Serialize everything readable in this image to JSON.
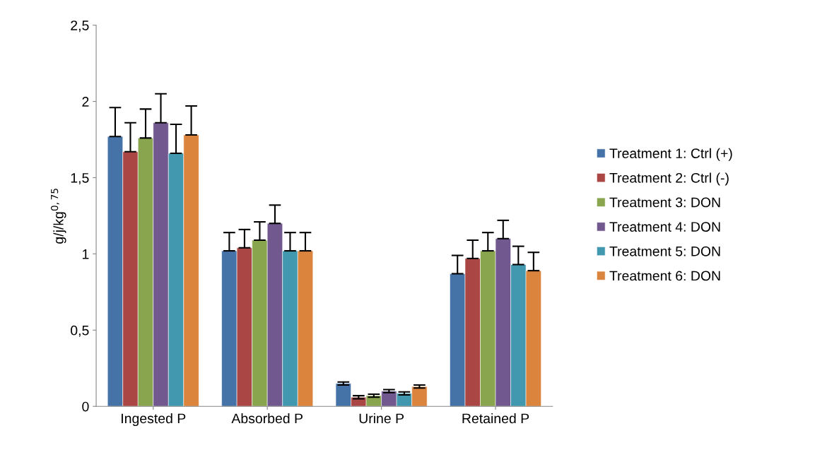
{
  "chart_data": {
    "type": "bar",
    "ylabel": "g/j/kg$^{0,75}$",
    "categories": [
      "Ingested P",
      "Absorbed P",
      "Urine P",
      "Retained P"
    ],
    "series": [
      {
        "name": "Treatment 1: Ctrl (+)",
        "color": "#4572a7",
        "values": [
          1.77,
          1.02,
          0.15,
          0.87
        ],
        "errors": [
          [
            1.77,
            1.96
          ],
          [
            1.02,
            1.14
          ],
          [
            0.14,
            0.16
          ],
          [
            0.87,
            0.99
          ]
        ]
      },
      {
        "name": "Treatment 2: Ctrl (-)",
        "color": "#aa4643",
        "values": [
          1.67,
          1.04,
          0.06,
          0.97
        ],
        "errors": [
          [
            1.67,
            1.86
          ],
          [
            1.04,
            1.16
          ],
          [
            0.05,
            0.07
          ],
          [
            0.97,
            1.09
          ]
        ]
      },
      {
        "name": "Treatment 3: DON",
        "color": "#89a54e",
        "values": [
          1.76,
          1.09,
          0.07,
          1.02
        ],
        "errors": [
          [
            1.76,
            1.95
          ],
          [
            1.09,
            1.21
          ],
          [
            0.06,
            0.08
          ],
          [
            1.02,
            1.14
          ]
        ]
      },
      {
        "name": "Treatment 4: DON",
        "color": "#71588f",
        "values": [
          1.86,
          1.2,
          0.1,
          1.1
        ],
        "errors": [
          [
            1.86,
            2.05
          ],
          [
            1.2,
            1.32
          ],
          [
            0.09,
            0.11
          ],
          [
            1.1,
            1.22
          ]
        ]
      },
      {
        "name": "Treatment 5: DON",
        "color": "#4198af",
        "values": [
          1.66,
          1.02,
          0.085,
          0.93
        ],
        "errors": [
          [
            1.66,
            1.85
          ],
          [
            1.02,
            1.14
          ],
          [
            0.075,
            0.095
          ],
          [
            0.93,
            1.05
          ]
        ]
      },
      {
        "name": "Treatment 6: DON",
        "color": "#db843d",
        "values": [
          1.78,
          1.02,
          0.13,
          0.89
        ],
        "errors": [
          [
            1.78,
            1.97
          ],
          [
            1.02,
            1.14
          ],
          [
            0.12,
            0.14
          ],
          [
            0.89,
            1.01
          ]
        ]
      }
    ],
    "ylim": [
      0,
      2.5
    ],
    "yticks": [
      0,
      {
        "value": 0.5,
        "label": "0,5"
      },
      1,
      {
        "value": 1.5,
        "label": "1,5"
      },
      2,
      {
        "value": 2.5,
        "label": "2,5"
      }
    ],
    "grid": false,
    "legend": "right"
  }
}
